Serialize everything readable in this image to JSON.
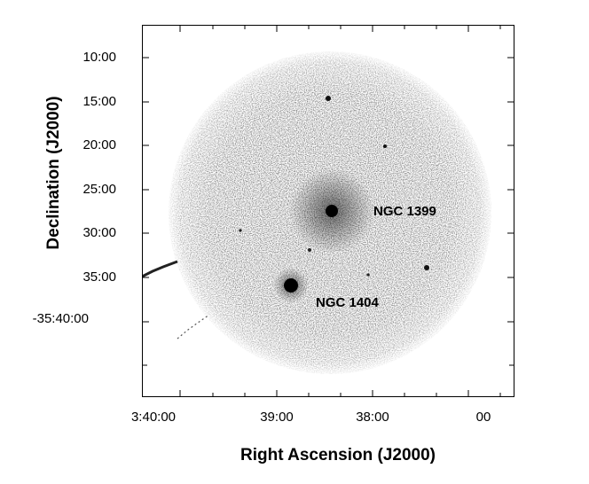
{
  "image": {
    "kind": "x-ray-sky-map",
    "colormap": "grayscale-inverted",
    "background": "#ffffff",
    "field_color": "#000000"
  },
  "axes": {
    "xlabel": "Right Ascension (J2000)",
    "ylabel": "Declination (J2000)",
    "x_ticks": [
      "3:40:00",
      "39:00",
      "38:00",
      "00"
    ],
    "y_ticks": [
      "10:00",
      "15:00",
      "20:00",
      "25:00",
      "30:00",
      "35:00",
      "-35:40:00"
    ]
  },
  "sources": [
    {
      "name": "NGC 1399",
      "type": "bright-point-source"
    },
    {
      "name": "NGC 1404",
      "type": "bright-point-source"
    }
  ]
}
